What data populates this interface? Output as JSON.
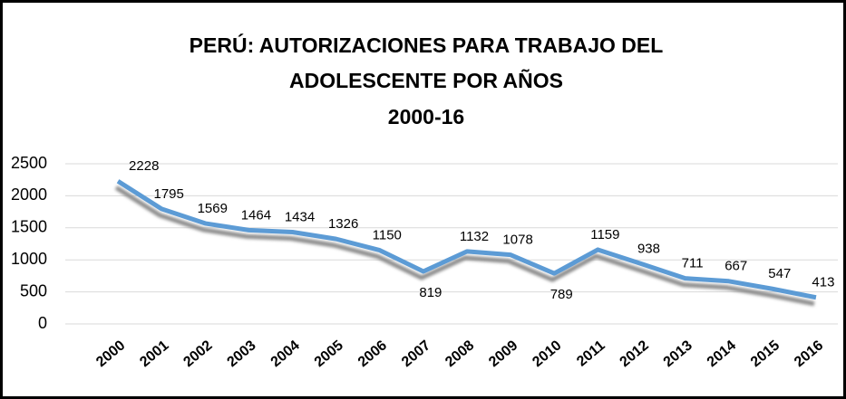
{
  "chart_data": {
    "type": "line",
    "title": [
      "PERÚ: AUTORIZACIONES PARA TRABAJO DEL",
      "ADOLESCENTE POR AÑOS",
      "2000-16"
    ],
    "categories": [
      "2000",
      "2001",
      "2002",
      "2003",
      "2004",
      "2005",
      "2006",
      "2007",
      "2008",
      "2009",
      "2010",
      "2011",
      "2012",
      "2013",
      "2014",
      "2015",
      "2016"
    ],
    "values": [
      2228,
      1795,
      1569,
      1464,
      1434,
      1326,
      1150,
      819,
      1132,
      1078,
      789,
      1159,
      938,
      711,
      667,
      547,
      413
    ],
    "color": "#5b9bd5",
    "ylim": [
      0,
      2500
    ],
    "yticks": [
      0,
      500,
      1000,
      1500,
      2000,
      2500
    ],
    "grid": true
  }
}
